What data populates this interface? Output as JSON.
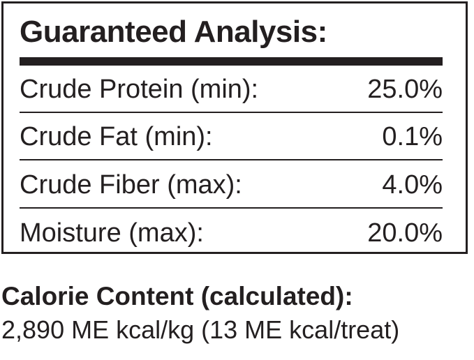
{
  "title": "Guaranteed Analysis:",
  "rows": [
    {
      "label": "Crude Protein (min):",
      "value": "25.0%"
    },
    {
      "label": "Crude Fat (min):",
      "value": "0.1%"
    },
    {
      "label": "Crude Fiber (max):",
      "value": "4.0%"
    },
    {
      "label": "Moisture (max):",
      "value": "20.0%"
    }
  ],
  "calorie": {
    "title": "Calorie Content (calculated):",
    "value": "2,890 ME kcal/kg (13 ME kcal/treat)"
  }
}
